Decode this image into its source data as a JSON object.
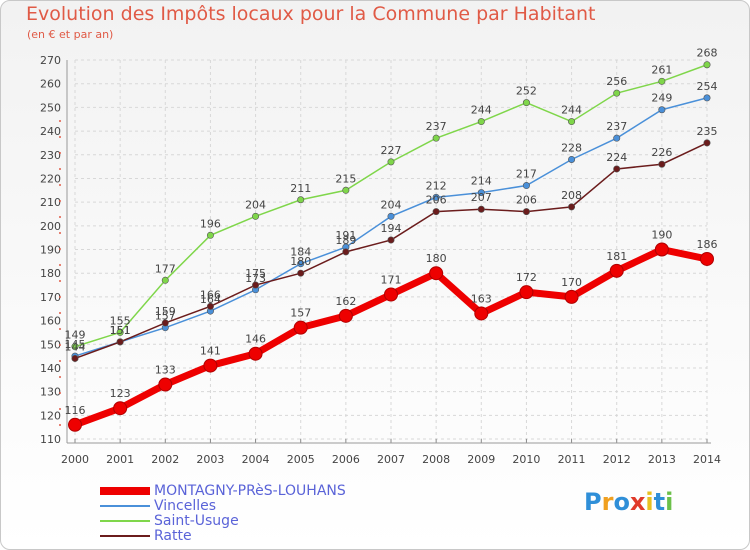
{
  "chart_data": {
    "type": "line",
    "title": "Evolution des Impôts locaux pour la Commune par Habitant",
    "subtitle": "(en € et par an)",
    "xlabel": "",
    "ylabel": "",
    "ylim": [
      110,
      270
    ],
    "yticks": [
      110,
      120,
      130,
      140,
      150,
      160,
      170,
      180,
      190,
      200,
      210,
      220,
      230,
      240,
      250,
      260,
      270
    ],
    "x": [
      "2000",
      "2001",
      "2002",
      "2003",
      "2004",
      "2005",
      "2006",
      "2007",
      "2008",
      "2009",
      "2010",
      "2011",
      "2012",
      "2013",
      "2014"
    ],
    "grid": true,
    "legend_position": "bottom-left",
    "series": [
      {
        "name": "MONTAGNY-PRèS-LOUHANS",
        "color": "#ee0000",
        "emphasis": true,
        "values": [
          116,
          123,
          133,
          141,
          146,
          157,
          162,
          171,
          180,
          163,
          172,
          170,
          181,
          190,
          186
        ]
      },
      {
        "name": "Vincelles",
        "color": "#4a90d9",
        "values": [
          145,
          151,
          157,
          164,
          173,
          184,
          191,
          204,
          212,
          214,
          217,
          228,
          237,
          249,
          254
        ]
      },
      {
        "name": "Saint-Usuge",
        "color": "#7fd64a",
        "values": [
          149,
          155,
          177,
          196,
          204,
          211,
          215,
          227,
          237,
          244,
          252,
          244,
          256,
          261,
          268
        ]
      },
      {
        "name": "Ratte",
        "color": "#6b1c1c",
        "values": [
          144,
          151,
          159,
          166,
          175,
          180,
          189,
          194,
          206,
          207,
          206,
          208,
          224,
          226,
          235
        ]
      }
    ]
  },
  "legend": {
    "items": [
      {
        "label": "MONTAGNY-PRèS-LOUHANS",
        "color": "#ee0000"
      },
      {
        "label": "Vincelles",
        "color": "#4a90d9"
      },
      {
        "label": "Saint-Usuge",
        "color": "#7fd64a"
      },
      {
        "label": "Ratte",
        "color": "#6b1c1c"
      }
    ]
  },
  "brand": {
    "letters": [
      "P",
      "r",
      "o",
      "x",
      "i",
      "t",
      "i"
    ],
    "colors": [
      "#2f8fd8",
      "#f0a020",
      "#2f8fd8",
      "#e03a2a",
      "#e8c020",
      "#2f8fd8",
      "#6cc04a"
    ]
  }
}
